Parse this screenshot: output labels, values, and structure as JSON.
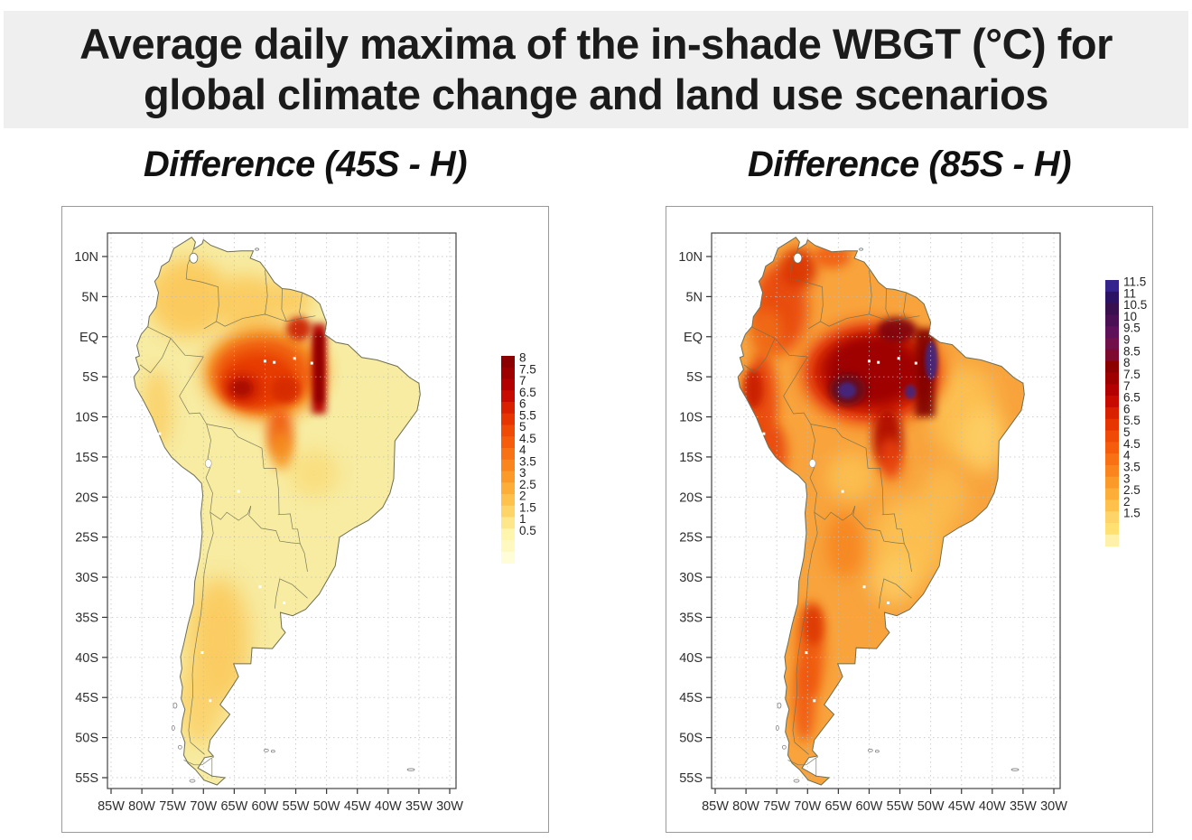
{
  "header": {
    "title_line1": "Average daily maxima of the in-shade WBGT (°C) for",
    "title_line2": "global climate change and land use scenarios"
  },
  "panels": [
    {
      "title": "Difference (45S - H)",
      "lat_tick_labels": [
        "10N",
        "5N",
        "EQ",
        "5S",
        "10S",
        "15S",
        "20S",
        "25S",
        "30S",
        "35S",
        "40S",
        "45S",
        "50S",
        "55S"
      ],
      "lon_tick_labels": [
        "85W",
        "80W",
        "75W",
        "70W",
        "65W",
        "60W",
        "55W",
        "50W",
        "45W",
        "40W",
        "35W",
        "30W"
      ],
      "colorbar": {
        "labels": [
          "8",
          "7.5",
          "7",
          "6.5",
          "6",
          "5.5",
          "5",
          "4.5",
          "4",
          "3.5",
          "3",
          "2.5",
          "2",
          "1.5",
          "1",
          "0.5"
        ],
        "colors": [
          "#8b0000",
          "#9e0000",
          "#b30000",
          "#c80b00",
          "#d92100",
          "#e63500",
          "#ef4a06",
          "#f55d0d",
          "#f87115",
          "#fa851e",
          "#fb9a28",
          "#fcae38",
          "#fdc14c",
          "#fed468",
          "#fee78a",
          "#fff5ad"
        ],
        "extra_colors": [
          "#fff8bf",
          "#fffdd8"
        ]
      }
    },
    {
      "title": "Difference (85S - H)",
      "lat_tick_labels": [
        "10N",
        "5N",
        "EQ",
        "5S",
        "10S",
        "15S",
        "20S",
        "25S",
        "30S",
        "35S",
        "40S",
        "45S",
        "50S",
        "55S"
      ],
      "lon_tick_labels": [
        "85W",
        "80W",
        "75W",
        "70W",
        "65W",
        "60W",
        "55W",
        "50W",
        "45W",
        "40W",
        "35W",
        "30W"
      ],
      "colorbar": {
        "labels": [
          "11.5",
          "11",
          "10.5",
          "10",
          "9.5",
          "9",
          "8.5",
          "8",
          "7.5",
          "7",
          "6.5",
          "6",
          "5.5",
          "5",
          "4.5",
          "4",
          "3.5",
          "3",
          "2.5",
          "2",
          "1.5"
        ],
        "colors": [
          "#34248c",
          "#2c1263",
          "#38104e",
          "#4a1054",
          "#5e1158",
          "#71104a",
          "#7f0a30",
          "#8b0000",
          "#9e0000",
          "#b30000",
          "#c80b00",
          "#d92100",
          "#e63500",
          "#ef4a06",
          "#f55d0d",
          "#f87115",
          "#fa851e",
          "#fb9a28",
          "#fcae38",
          "#fdc14c",
          "#fed468"
        ],
        "extra_colors": [
          "#ffe070",
          "#fff2a8"
        ]
      }
    }
  ],
  "chart_data": [
    {
      "type": "heatmap",
      "title": "Difference (45S - H)",
      "variable": "Difference of average daily maxima of in-shade WBGT (°C), scenario 45S minus Historical",
      "x": {
        "tick_labels": [
          "85W",
          "80W",
          "75W",
          "70W",
          "65W",
          "60W",
          "55W",
          "50W",
          "45W",
          "40W",
          "35W",
          "30W"
        ],
        "range_lon_deg": [
          -85,
          -30
        ]
      },
      "y": {
        "tick_labels": [
          "10N",
          "5N",
          "EQ",
          "5S",
          "10S",
          "15S",
          "20S",
          "25S",
          "30S",
          "35S",
          "40S",
          "45S",
          "50S",
          "55S"
        ],
        "range_lat_deg": [
          12.9,
          -55.9
        ]
      },
      "colorbar": {
        "min": 0.5,
        "max": 8,
        "step": 0.5,
        "position": "right"
      },
      "grid": "dotted 5-degree graticule",
      "regions": [
        {
          "area": "most of eastern and southern South America",
          "approx_value_C": 1.0
        },
        {
          "area": "NW South America (Colombia, Venezuela, Guianas)",
          "approx_value_C": 2.0
        },
        {
          "area": "central/southern Argentina band",
          "approx_value_C": 2.0
        },
        {
          "area": "Amazon basin (70W-50W, EQ-12S)",
          "approx_value_C": 5.0
        },
        {
          "area": "hotspot near 64W 6S",
          "approx_value_C": 7.0
        },
        {
          "area": "dark strip along ~51W, EQ-10S",
          "approx_value_C": 8.0
        }
      ]
    },
    {
      "type": "heatmap",
      "title": "Difference (85S - H)",
      "variable": "Difference of average daily maxima of in-shade WBGT (°C), scenario 85S minus Historical",
      "x": {
        "tick_labels": [
          "85W",
          "80W",
          "75W",
          "70W",
          "65W",
          "60W",
          "55W",
          "50W",
          "45W",
          "40W",
          "35W",
          "30W"
        ],
        "range_lon_deg": [
          -85,
          -30
        ]
      },
      "y": {
        "tick_labels": [
          "10N",
          "5N",
          "EQ",
          "5S",
          "10S",
          "15S",
          "20S",
          "25S",
          "30S",
          "35S",
          "40S",
          "45S",
          "50S",
          "55S"
        ],
        "range_lat_deg": [
          12.9,
          -55.9
        ]
      },
      "colorbar": {
        "min": 1.5,
        "max": 11.5,
        "step": 0.5,
        "position": "right"
      },
      "grid": "dotted 5-degree graticule",
      "regions": [
        {
          "area": "most of South America",
          "approx_value_C": 4.0
        },
        {
          "area": "eastern Brazil and southern Brazil",
          "approx_value_C": 2.5
        },
        {
          "area": "NW Colombia and coastal Peru",
          "approx_value_C": 6.0
        },
        {
          "area": "Amazon basin core (68W-50W, EQ-12S)",
          "approx_value_C": 8.5
        },
        {
          "area": "purple anomaly spots near 64W 7S and 50W 3S",
          "approx_value_C": 11.0
        },
        {
          "area": "Patagonian Andes strip",
          "approx_value_C": 5.0
        }
      ]
    }
  ]
}
